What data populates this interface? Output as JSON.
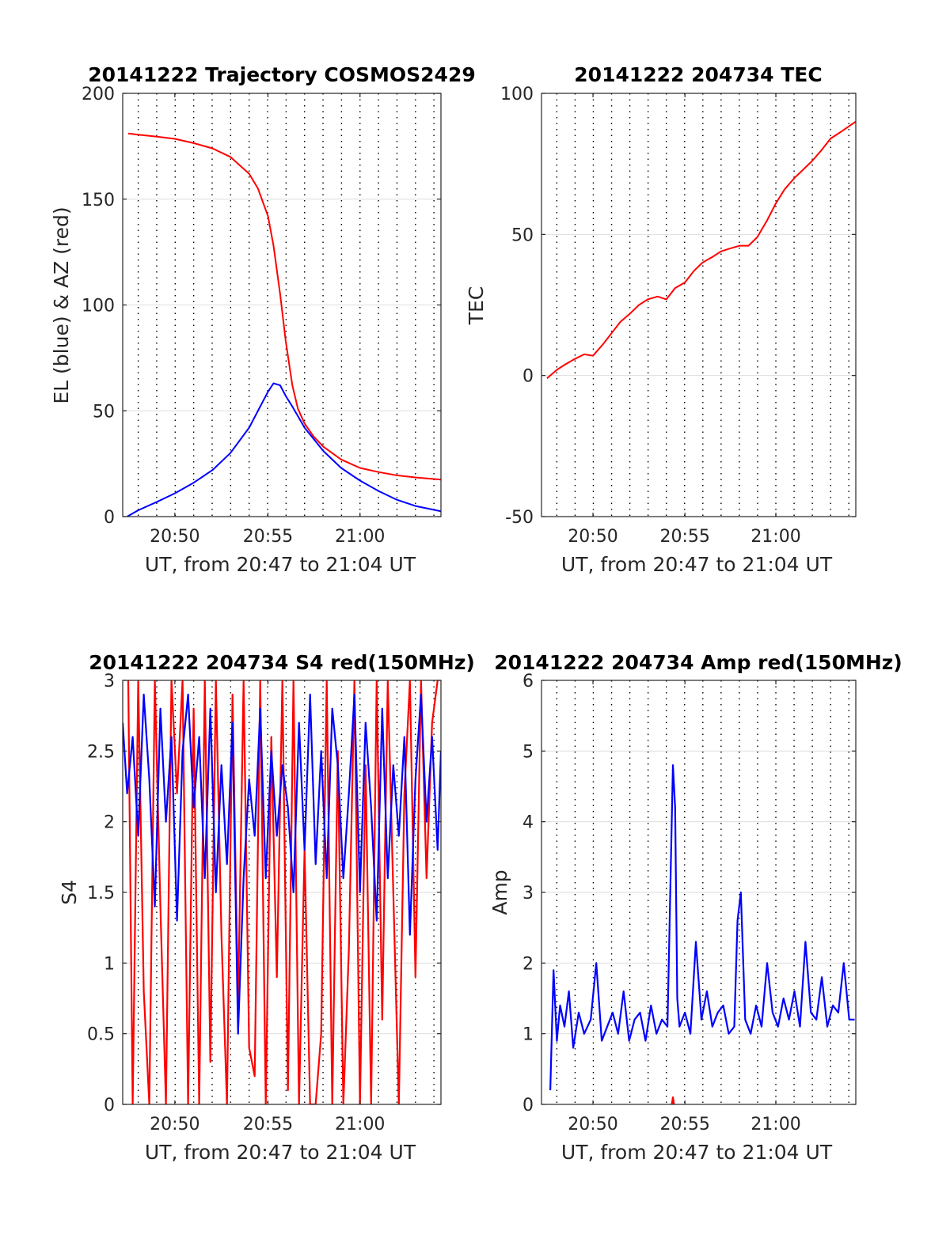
{
  "chart_data": [
    {
      "type": "line",
      "title": "20141222 Trajectory COSMOS2429",
      "xlabel": "UT, from 20:47 to 21:04 UT",
      "ylabel": "EL (blue) & AZ (red)",
      "x_unit": "minutes",
      "xlim": [
        20.786,
        21.073
      ],
      "xticks": [
        20.833,
        20.917,
        21.0
      ],
      "xtick_labels": [
        "20:50",
        "20:55",
        "21:00"
      ],
      "ylim": [
        0,
        200
      ],
      "yticks": [
        0,
        50,
        100,
        150,
        200
      ],
      "ytick_labels": [
        "0",
        "50",
        "100",
        "150",
        "200"
      ],
      "grid": true,
      "series": [
        {
          "color": "#ff0000",
          "x": [
            20.791,
            20.8,
            20.817,
            20.833,
            20.85,
            20.867,
            20.883,
            20.9,
            20.908,
            20.917,
            20.922,
            20.928,
            20.933,
            20.939,
            20.944,
            20.95,
            20.958,
            20.967,
            20.983,
            21.0,
            21.017,
            21.033,
            21.05,
            21.073
          ],
          "values": [
            181,
            180.5,
            179.5,
            178.5,
            176.5,
            174,
            170,
            162,
            155,
            142,
            128,
            105,
            83,
            62,
            51,
            44,
            38,
            33,
            27,
            23,
            21,
            19.5,
            18.5,
            17.5
          ]
        },
        {
          "color": "#0000ff",
          "x": [
            20.79,
            20.8,
            20.817,
            20.833,
            20.85,
            20.867,
            20.883,
            20.9,
            20.91,
            20.917,
            20.922,
            20.928,
            20.933,
            20.939,
            20.95,
            20.967,
            20.983,
            21.0,
            21.017,
            21.033,
            21.05,
            21.073
          ],
          "values": [
            0,
            3,
            7,
            11,
            16,
            22,
            30,
            42,
            52,
            59,
            63,
            62,
            57,
            52,
            42,
            31,
            23,
            17,
            12,
            8,
            5,
            2.5
          ]
        }
      ]
    },
    {
      "type": "line",
      "title": "20141222 204734 TEC",
      "xlabel": "UT, from 20:47 to 21:04 UT",
      "ylabel": "TEC",
      "xlim": [
        20.786,
        21.073
      ],
      "xticks": [
        20.833,
        20.917,
        21.0
      ],
      "xtick_labels": [
        "20:50",
        "20:55",
        "21:00"
      ],
      "ylim": [
        -50,
        100
      ],
      "yticks": [
        -50,
        0,
        50,
        100
      ],
      "ytick_labels": [
        "-50",
        "0",
        "50",
        "100"
      ],
      "grid": true,
      "series": [
        {
          "color": "#ff0000",
          "x": [
            20.791,
            20.8,
            20.808,
            20.817,
            20.825,
            20.833,
            20.842,
            20.85,
            20.858,
            20.867,
            20.875,
            20.883,
            20.892,
            20.9,
            20.908,
            20.917,
            20.925,
            20.933,
            20.942,
            20.95,
            20.958,
            20.967,
            20.975,
            20.983,
            20.992,
            21.0,
            21.008,
            21.017,
            21.025,
            21.033,
            21.042,
            21.05,
            21.058,
            21.073
          ],
          "values": [
            -1,
            2,
            4,
            6,
            7.5,
            7,
            11,
            15,
            19,
            22,
            25,
            27,
            28,
            27,
            31,
            33,
            37,
            40,
            42,
            44,
            45,
            46,
            46,
            49,
            55,
            61,
            66,
            70,
            73,
            76,
            80,
            84,
            86,
            90
          ]
        }
      ]
    },
    {
      "type": "line",
      "title": "20141222 204734 S4 red(150MHz)",
      "xlabel": "UT, from 20:47 to 21:04 UT",
      "ylabel": "S4",
      "xlim": [
        20.786,
        21.073
      ],
      "xticks": [
        20.833,
        20.917,
        21.0
      ],
      "xtick_labels": [
        "20:50",
        "20:55",
        "21:00"
      ],
      "ylim": [
        0,
        3
      ],
      "yticks": [
        0,
        0.5,
        1,
        1.5,
        2,
        2.5,
        3
      ],
      "ytick_labels": [
        "0",
        "0.5",
        "1",
        "1.5",
        "2",
        "2.5",
        "3"
      ],
      "grid": true,
      "series": [
        {
          "color": "#ff0000",
          "x": [
            20.791,
            20.795,
            20.8,
            20.805,
            20.81,
            20.815,
            20.82,
            20.825,
            20.83,
            20.835,
            20.84,
            20.845,
            20.85,
            20.855,
            20.86,
            20.865,
            20.87,
            20.875,
            20.88,
            20.885,
            20.89,
            20.895,
            20.9,
            20.905,
            20.91,
            20.915,
            20.92,
            20.925,
            20.93,
            20.935,
            20.94,
            20.945,
            20.95,
            20.955,
            20.96,
            20.965,
            20.97,
            20.975,
            20.98,
            20.985,
            20.99,
            20.995,
            21.0,
            21.005,
            21.01,
            21.015,
            21.02,
            21.025,
            21.03,
            21.035,
            21.04,
            21.045,
            21.05,
            21.055,
            21.06,
            21.065,
            21.07
          ],
          "values": [
            3,
            0,
            3,
            0.8,
            0,
            3,
            1.4,
            0,
            3,
            2.2,
            3,
            0,
            2.8,
            0,
            3,
            0.3,
            3,
            1.2,
            0,
            2.9,
            0.7,
            3,
            0.4,
            0.2,
            3,
            0,
            2.6,
            0.9,
            3,
            0.1,
            3,
            0,
            1.8,
            0,
            0,
            0.5,
            3,
            0,
            2.5,
            0,
            1.1,
            3,
            0,
            2.4,
            0,
            3,
            0.6,
            3,
            1.5,
            0,
            2.2,
            3,
            0.9,
            3,
            1.6,
            2.7,
            3
          ]
        },
        {
          "color": "#0000ff",
          "x": [
            20.786,
            20.79,
            20.795,
            20.8,
            20.805,
            20.81,
            20.815,
            20.82,
            20.825,
            20.83,
            20.835,
            20.84,
            20.845,
            20.85,
            20.855,
            20.86,
            20.865,
            20.87,
            20.875,
            20.88,
            20.885,
            20.89,
            20.895,
            20.9,
            20.905,
            20.91,
            20.915,
            20.92,
            20.925,
            20.93,
            20.935,
            20.94,
            20.945,
            20.95,
            20.955,
            20.96,
            20.965,
            20.97,
            20.975,
            20.98,
            20.985,
            20.99,
            20.995,
            21.0,
            21.005,
            21.01,
            21.015,
            21.02,
            21.025,
            21.03,
            21.035,
            21.04,
            21.045,
            21.05,
            21.055,
            21.06,
            21.065,
            21.07,
            21.073
          ],
          "values": [
            2.7,
            2.2,
            2.6,
            1.9,
            2.9,
            2.3,
            1.4,
            2.8,
            2.0,
            2.6,
            1.3,
            2.5,
            2.9,
            2.1,
            2.6,
            1.6,
            2.8,
            1.5,
            2.4,
            1.7,
            2.7,
            0.5,
            1.6,
            2.3,
            1.9,
            2.8,
            1.6,
            2.5,
            1.9,
            2.4,
            2.1,
            1.5,
            2.7,
            1.8,
            2.9,
            1.7,
            2.5,
            1.6,
            2.8,
            2.4,
            1.6,
            2.2,
            2.9,
            1.5,
            2.7,
            2.1,
            1.3,
            2.8,
            1.6,
            2.4,
            1.9,
            2.6,
            1.2,
            2.3,
            2.9,
            2.0,
            2.6,
            1.8,
            2.5
          ]
        }
      ]
    },
    {
      "type": "line",
      "title": "20141222 204734 Amp red(150MHz)",
      "xlabel": "UT, from 20:47 to 21:04 UT",
      "ylabel": "Amp",
      "xlim": [
        20.786,
        21.073
      ],
      "xticks": [
        20.833,
        20.917,
        21.0
      ],
      "xtick_labels": [
        "20:50",
        "20:55",
        "21:00"
      ],
      "ylim": [
        0,
        6
      ],
      "yticks": [
        0,
        1,
        2,
        3,
        4,
        5,
        6
      ],
      "ytick_labels": [
        "0",
        "1",
        "2",
        "3",
        "4",
        "5",
        "6"
      ],
      "grid": true,
      "series": [
        {
          "color": "#0000ff",
          "x": [
            20.794,
            20.797,
            20.8,
            20.803,
            20.807,
            20.811,
            20.815,
            20.82,
            20.825,
            20.831,
            20.836,
            20.841,
            20.846,
            20.851,
            20.856,
            20.861,
            20.866,
            20.871,
            20.876,
            20.881,
            20.886,
            20.891,
            20.896,
            20.901,
            20.906,
            20.908,
            20.91,
            20.912,
            20.917,
            20.922,
            20.927,
            20.932,
            20.937,
            20.942,
            20.947,
            20.952,
            20.957,
            20.962,
            20.965,
            20.968,
            20.972,
            20.977,
            20.982,
            20.987,
            20.992,
            20.997,
            21.002,
            21.007,
            21.012,
            21.017,
            21.022,
            21.027,
            21.032,
            21.037,
            21.042,
            21.047,
            21.052,
            21.057,
            21.062,
            21.067,
            21.072
          ],
          "values": [
            0.2,
            1.9,
            0.9,
            1.4,
            1.1,
            1.6,
            0.8,
            1.3,
            1.0,
            1.2,
            2.0,
            0.9,
            1.1,
            1.3,
            1.0,
            1.6,
            0.9,
            1.2,
            1.3,
            0.9,
            1.4,
            1.0,
            1.2,
            1.1,
            4.8,
            4.2,
            1.5,
            1.1,
            1.3,
            1.0,
            2.3,
            1.2,
            1.6,
            1.1,
            1.3,
            1.4,
            1.0,
            1.1,
            2.6,
            3.0,
            1.2,
            1.0,
            1.4,
            1.1,
            2.0,
            1.3,
            1.1,
            1.5,
            1.2,
            1.6,
            1.1,
            2.3,
            1.3,
            1.2,
            1.8,
            1.1,
            1.4,
            1.3,
            2.0,
            1.2,
            1.2
          ]
        },
        {
          "color": "#ff0000",
          "x": [
            20.905,
            20.906,
            20.907
          ],
          "values": [
            0,
            0.1,
            0
          ]
        }
      ]
    }
  ]
}
